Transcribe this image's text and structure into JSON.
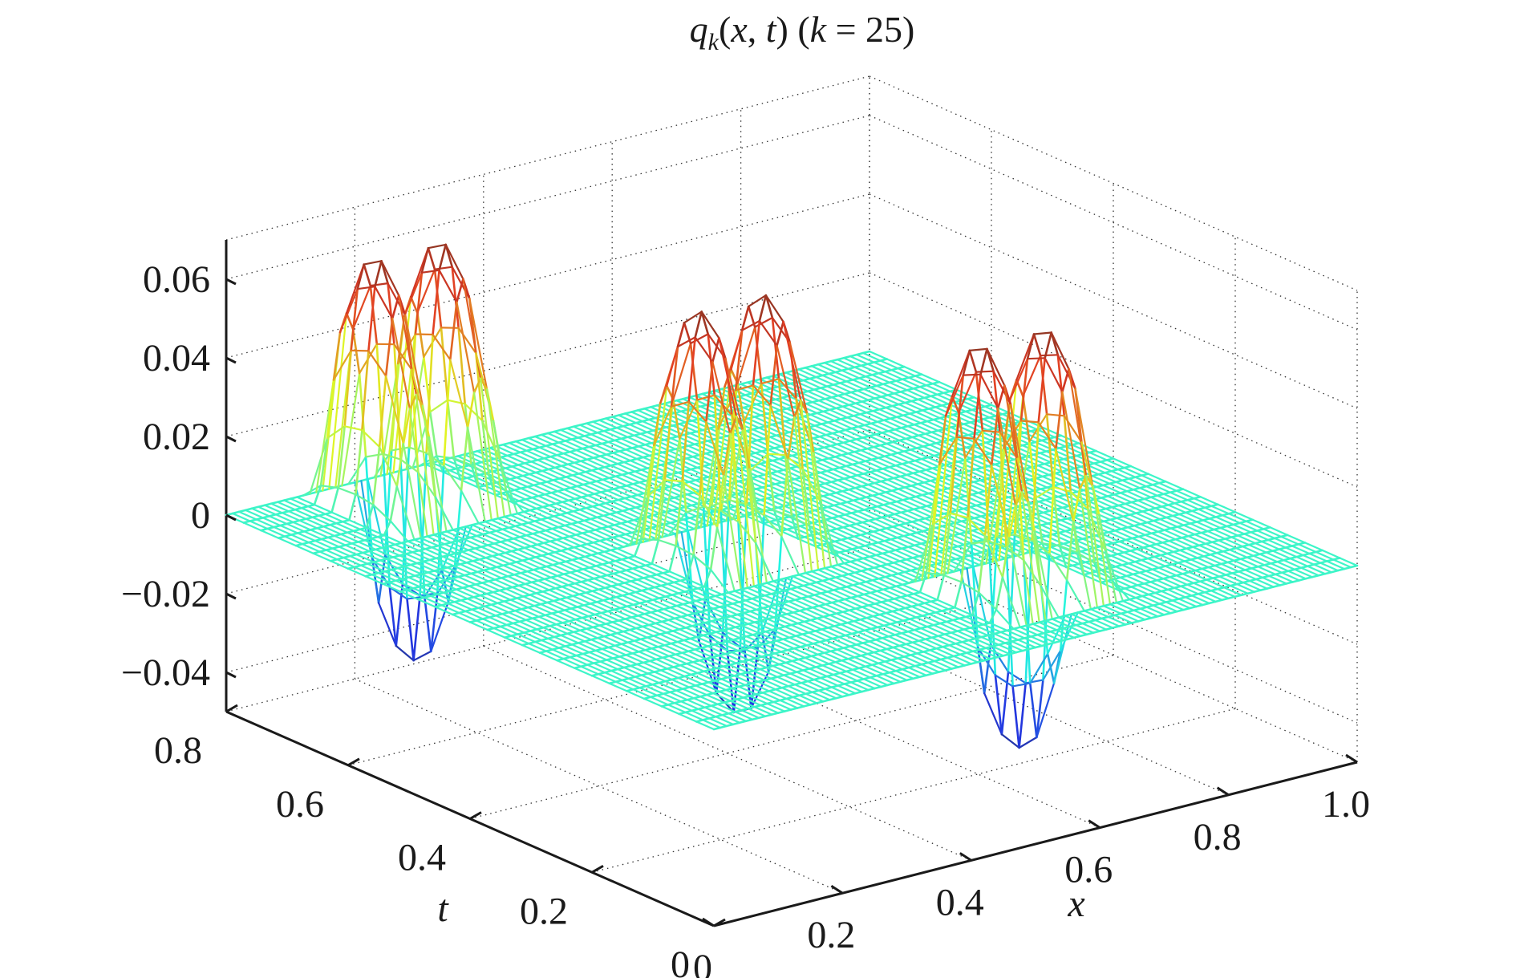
{
  "chart_data": {
    "type": "surface",
    "title": "q_k(x, t) (k = 25)",
    "title_parts": {
      "q": "q",
      "sub": "k",
      "rest1": "(",
      "x": "x",
      "sep": ", ",
      "t": "t",
      "close": ") (",
      "k": "k",
      "eq": " = 25)"
    },
    "xlabel": "x",
    "ylabel": "t",
    "zlabel": "",
    "xlim": [
      0,
      1.0
    ],
    "ylim": [
      0,
      0.8
    ],
    "zlim": [
      -0.05,
      0.07
    ],
    "x_ticks": [
      {
        "value": 0,
        "label": "0"
      },
      {
        "value": 0.2,
        "label": "0.2"
      },
      {
        "value": 0.4,
        "label": "0.4"
      },
      {
        "value": 0.6,
        "label": "0.6"
      },
      {
        "value": 0.8,
        "label": "0.8"
      },
      {
        "value": 1.0,
        "label": "1.0"
      }
    ],
    "t_ticks": [
      {
        "value": 0,
        "label": "0"
      },
      {
        "value": 0.2,
        "label": "0.2"
      },
      {
        "value": 0.4,
        "label": "0.4"
      },
      {
        "value": 0.6,
        "label": "0.6"
      },
      {
        "value": 0.8,
        "label": "0.8"
      }
    ],
    "z_ticks": [
      {
        "value": 0.06,
        "label": "0.06"
      },
      {
        "value": 0.04,
        "label": "0.04"
      },
      {
        "value": 0.02,
        "label": "0.02"
      },
      {
        "value": 0,
        "label": "0"
      },
      {
        "value": -0.02,
        "label": "−0.02"
      },
      {
        "value": -0.04,
        "label": "−0.04"
      }
    ],
    "grid": true,
    "colormap": "jet",
    "surface_style": "mesh",
    "pulses": [
      {
        "t_center": 0.72,
        "x_peaks": [
          0.16,
          0.26
        ],
        "x_trough": 0.21,
        "peak": 0.064,
        "trough": -0.04
      },
      {
        "t_center": 0.4,
        "x_peaks": [
          0.36,
          0.46
        ],
        "x_trough": 0.41,
        "peak": 0.064,
        "trough": -0.04
      },
      {
        "t_center": 0.15,
        "x_peaks": [
          0.56,
          0.66
        ],
        "x_trough": 0.61,
        "peak": 0.064,
        "trough": -0.04
      }
    ],
    "pulse_t_halfwidth": 0.07,
    "grid_resolution": {
      "nx": 100,
      "nt": 28
    }
  }
}
